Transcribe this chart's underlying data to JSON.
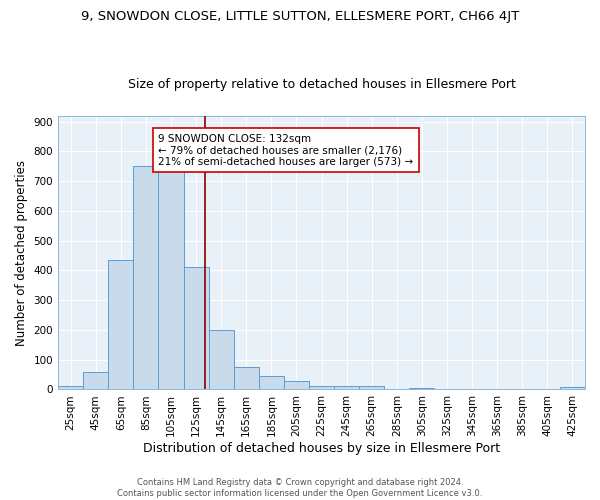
{
  "title": "9, SNOWDON CLOSE, LITTLE SUTTON, ELLESMERE PORT, CH66 4JT",
  "subtitle": "Size of property relative to detached houses in Ellesmere Port",
  "xlabel": "Distribution of detached houses by size in Ellesmere Port",
  "ylabel": "Number of detached properties",
  "bin_labels": [
    "25sqm",
    "45sqm",
    "65sqm",
    "85sqm",
    "105sqm",
    "125sqm",
    "145sqm",
    "165sqm",
    "185sqm",
    "205sqm",
    "225sqm",
    "245sqm",
    "265sqm",
    "285sqm",
    "305sqm",
    "325sqm",
    "345sqm",
    "365sqm",
    "385sqm",
    "405sqm",
    "425sqm"
  ],
  "bin_edges": [
    15,
    35,
    55,
    75,
    95,
    115,
    135,
    155,
    175,
    195,
    215,
    235,
    255,
    275,
    295,
    315,
    335,
    355,
    375,
    395,
    415,
    435
  ],
  "values": [
    10,
    60,
    435,
    750,
    750,
    410,
    200,
    75,
    45,
    30,
    12,
    10,
    10,
    0,
    5,
    0,
    0,
    0,
    0,
    0,
    7
  ],
  "bar_color": "#c9daea",
  "bar_edge_color": "#5b9bd5",
  "vline_x": 132,
  "vline_color": "#8b0000",
  "annotation_text": "9 SNOWDON CLOSE: 132sqm\n← 79% of detached houses are smaller (2,176)\n21% of semi-detached houses are larger (573) →",
  "annotation_box_color": "white",
  "annotation_box_edge": "#cc0000",
  "ylim": [
    0,
    920
  ],
  "yticks": [
    0,
    100,
    200,
    300,
    400,
    500,
    600,
    700,
    800,
    900
  ],
  "background_color": "#e8f0f8",
  "grid_color": "white",
  "footer": "Contains HM Land Registry data © Crown copyright and database right 2024.\nContains public sector information licensed under the Open Government Licence v3.0.",
  "title_fontsize": 9.5,
  "subtitle_fontsize": 9,
  "xlabel_fontsize": 9,
  "ylabel_fontsize": 8.5,
  "tick_fontsize": 7.5,
  "annotation_fontsize": 7.5,
  "footer_fontsize": 6
}
